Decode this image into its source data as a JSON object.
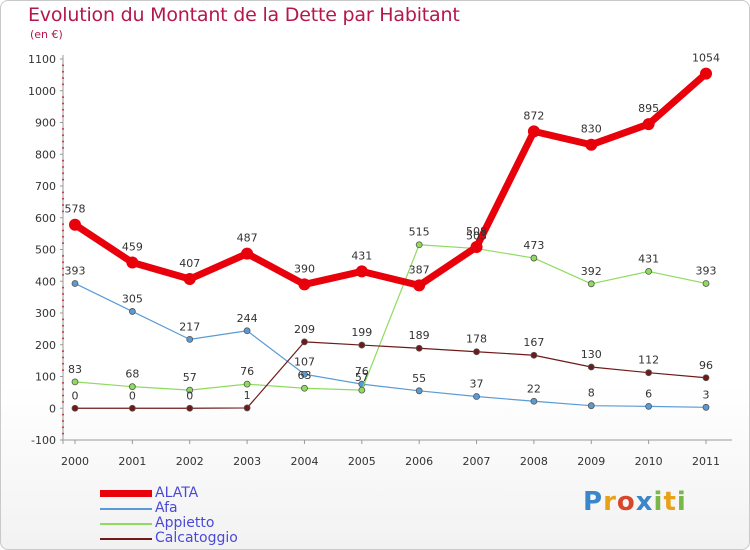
{
  "header": {
    "title": "Evolution du Montant de la Dette par Habitant",
    "subtitle": "(en €)"
  },
  "logo": {
    "letters": [
      {
        "ch": "P",
        "color": "#3a86c8"
      },
      {
        "ch": "r",
        "color": "#e8a21a"
      },
      {
        "ch": "o",
        "color": "#d9472b"
      },
      {
        "ch": "x",
        "color": "#3a86c8"
      },
      {
        "ch": "i",
        "color": "#7ab648"
      },
      {
        "ch": "t",
        "color": "#e8a21a"
      },
      {
        "ch": "i",
        "color": "#7ab648"
      }
    ]
  },
  "chart_data": {
    "type": "line",
    "title": "Evolution du Montant de la Dette par Habitant",
    "subtitle": "(en €)",
    "x": [
      "2000",
      "2001",
      "2002",
      "2003",
      "2004",
      "2005",
      "2006",
      "2007",
      "2008",
      "2009",
      "2010",
      "2011"
    ],
    "ylim": [
      -100,
      1100
    ],
    "yticks": [
      "-100",
      "0",
      "100",
      "200",
      "300",
      "400",
      "500",
      "600",
      "700",
      "800",
      "900",
      "1000",
      "1100"
    ],
    "grid": false,
    "legend_position": "bottom-left",
    "series": [
      {
        "name": "ALATA",
        "color": "#e8000b",
        "width": 7,
        "marker": 6,
        "values": [
          578,
          459,
          407,
          487,
          390,
          431,
          387,
          508,
          872,
          830,
          895,
          1054
        ],
        "labels": [
          "578",
          "459",
          "407",
          "487",
          "390",
          "431",
          "387",
          "508",
          "872",
          "830",
          "895",
          "1054"
        ]
      },
      {
        "name": "Afa",
        "color": "#5b9bd5",
        "width": 1.2,
        "marker": 3,
        "values": [
          393,
          305,
          217,
          244,
          107,
          76,
          55,
          37,
          22,
          8,
          6,
          3
        ],
        "labels": [
          "393",
          "305",
          "217",
          "244",
          "107",
          "76",
          "55",
          "37",
          "22",
          "8",
          "6",
          "3"
        ]
      },
      {
        "name": "Appietto",
        "color": "#8fdb5f",
        "width": 1.2,
        "marker": 3,
        "values": [
          83,
          68,
          57,
          76,
          63,
          57,
          515,
          503,
          473,
          392,
          431,
          393
        ],
        "labels": [
          "83",
          "68",
          "57",
          "76",
          "63",
          "57",
          "515",
          "503",
          "473",
          "392",
          "431",
          "393"
        ]
      },
      {
        "name": "Calcatoggio",
        "color": "#6e1a1a",
        "width": 1.2,
        "marker": 3,
        "values": [
          0,
          0,
          0,
          1,
          209,
          199,
          189,
          178,
          167,
          130,
          112,
          96
        ],
        "labels": [
          "0",
          "0",
          "0",
          "1",
          "209",
          "199",
          "189",
          "178",
          "167",
          "130",
          "112",
          "96"
        ]
      }
    ]
  }
}
